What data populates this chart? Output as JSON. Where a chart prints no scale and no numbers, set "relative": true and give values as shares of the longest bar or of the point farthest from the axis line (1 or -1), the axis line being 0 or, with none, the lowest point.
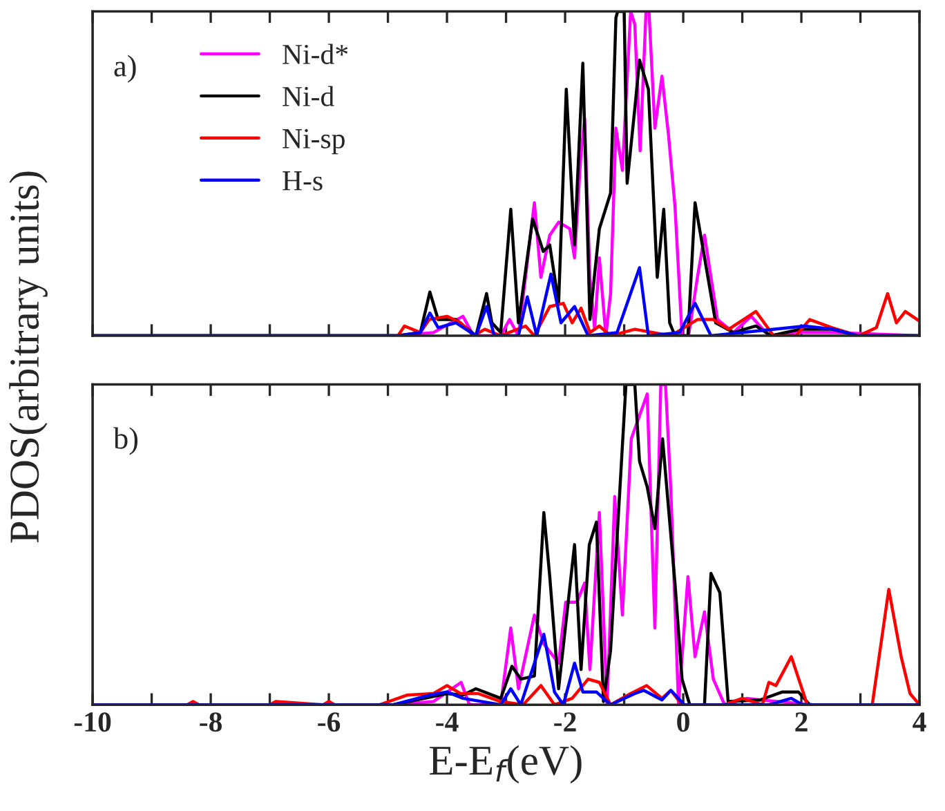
{
  "chart_data": [
    {
      "type": "line",
      "relative": true,
      "ylabel": "PDOS(arbitrary units)",
      "annotations": [
        "a)"
      ],
      "legend": "top left",
      "tick_labels": false,
      "xlim": [
        -10,
        4
      ],
      "xticks": [
        -10,
        {
          "value": -9,
          "label": null
        },
        -8,
        {
          "value": -7,
          "label": null
        },
        -6,
        {
          "value": -5,
          "label": null
        },
        -4,
        {
          "value": -3,
          "label": null
        },
        -2,
        {
          "value": -1,
          "label": null
        },
        0,
        {
          "value": 1,
          "label": null
        },
        2,
        {
          "value": 3,
          "label": null
        },
        4
      ],
      "marker": "none",
      "line_style": "solid",
      "series": [
        {
          "name": "Ni-d*",
          "color": "#ff00ff",
          "x": [
            -10,
            -4.83,
            -4.23,
            -3.73,
            -3.55,
            -3.09,
            -2.94,
            -2.79,
            -2.52,
            -2.41,
            -2.26,
            -2.11,
            -1.92,
            -1.84,
            -1.74,
            -1.67,
            -1.58,
            -1.5,
            -1.42,
            -1.31,
            -1.23,
            -1.14,
            -1.03,
            -0.89,
            -0.82,
            -0.73,
            -0.63,
            -0.58,
            -0.48,
            -0.36,
            -0.25,
            -0.14,
            -0.02,
            0.09,
            0.24,
            0.36,
            0.47,
            0.58,
            0.85,
            1.15,
            1.45,
            1.91,
            2.52,
            4.0
          ],
          "values": [
            0,
            0,
            0.01,
            0.06,
            0,
            0,
            0.05,
            0,
            0.41,
            0.18,
            0.31,
            0.35,
            0.33,
            0.24,
            0.54,
            0.67,
            0.18,
            0.02,
            0.24,
            0,
            0.13,
            0.64,
            0.51,
            1,
            0.96,
            0.57,
            1,
            1,
            0.64,
            0.8,
            0.62,
            0.4,
            0,
            0,
            0.18,
            0.31,
            0.18,
            0.05,
            0.01,
            0.06,
            0,
            0.01,
            0.01,
            0
          ]
        },
        {
          "name": "Ni-d",
          "color": "#000000",
          "x": [
            -10,
            -4.83,
            -4.45,
            -4.29,
            -4.15,
            -3.85,
            -3.51,
            -3.33,
            -3.24,
            -3.09,
            -2.92,
            -2.79,
            -2.55,
            -2.37,
            -2.26,
            -2.11,
            -1.98,
            -1.84,
            -1.7,
            -1.58,
            -1.42,
            -1.23,
            -1.14,
            -1.11,
            -1.0,
            -0.95,
            -0.82,
            -0.74,
            -0.59,
            -0.44,
            -0.33,
            -0.23,
            -0.14,
            0.08,
            0.2,
            0.39,
            0.55,
            0.85,
            1.23,
            1.49,
            1.98,
            2.52,
            2.97,
            4.0
          ],
          "values": [
            0,
            0,
            0.01,
            0.135,
            0.05,
            0.05,
            0,
            0.13,
            0.04,
            0.01,
            0.39,
            0.04,
            0.36,
            0.26,
            0.28,
            0.1,
            0.76,
            0.28,
            0.84,
            0.05,
            0.33,
            0.44,
            0.98,
            1,
            1,
            0.47,
            0.7,
            0.85,
            0.76,
            0.18,
            0.39,
            0.04,
            0,
            0,
            0.41,
            0.21,
            0.04,
            0.01,
            0.03,
            0,
            0.02,
            0.02,
            0,
            0
          ]
        },
        {
          "name": "Ni-sp",
          "color": "#ff0000",
          "x": [
            -10,
            -4.83,
            -4.72,
            -4.45,
            -4.3,
            -4.0,
            -3.77,
            -3.55,
            -3.36,
            -3.09,
            -2.67,
            -2.52,
            -2.26,
            -2.03,
            -1.88,
            -1.73,
            -1.58,
            -1.42,
            -1.23,
            -0.82,
            -0.21,
            0.24,
            0.51,
            0.77,
            1.23,
            1.53,
            1.91,
            2.14,
            2.52,
            2.97,
            3.27,
            3.46,
            3.61,
            3.76,
            4.0
          ],
          "values": [
            0,
            0,
            0.03,
            0.01,
            0.05,
            0.06,
            0.04,
            0,
            0.02,
            0,
            0.03,
            0,
            0.09,
            0.1,
            0.04,
            0.085,
            0.01,
            0.03,
            0,
            0.02,
            0,
            0.05,
            0.05,
            0.02,
            0.075,
            0,
            0,
            0.05,
            0.025,
            0,
            0.025,
            0.13,
            0.04,
            0.075,
            0.045
          ]
        },
        {
          "name": "H-s",
          "color": "#0000ff",
          "x": [
            -10,
            -4.83,
            -4.45,
            -4.29,
            -4.15,
            -3.85,
            -3.51,
            -3.33,
            -3.2,
            -2.79,
            -2.64,
            -2.48,
            -2.24,
            -2.07,
            -1.84,
            -1.61,
            -1.12,
            -0.74,
            -0.59,
            -0.06,
            0.2,
            0.47,
            2.06,
            2.55,
            2.97,
            4.0
          ],
          "values": [
            0,
            0,
            0.01,
            0.07,
            0.025,
            0.04,
            0,
            0.09,
            0,
            0,
            0.12,
            0,
            0.19,
            0.04,
            0.09,
            0,
            0.01,
            0.21,
            0,
            0.01,
            0.1,
            0,
            0.03,
            0.02,
            0,
            0
          ]
        }
      ]
    },
    {
      "type": "line",
      "relative": true,
      "xlabel": "E-E$_{f}$(eV)",
      "annotations": [
        "b)"
      ],
      "tick_labels": "x",
      "xlim": [
        -10,
        4
      ],
      "xticks": [
        -10,
        {
          "value": -9,
          "label": null
        },
        -8,
        {
          "value": -7,
          "label": null
        },
        -6,
        {
          "value": -5,
          "label": null
        },
        -4,
        {
          "value": -3,
          "label": null
        },
        -2,
        {
          "value": -1,
          "label": null
        },
        0,
        {
          "value": 1,
          "label": null
        },
        2,
        {
          "value": 3,
          "label": null
        },
        4
      ],
      "marker": "none",
      "line_style": "solid",
      "series": [
        {
          "color": "#ff00ff",
          "x": [
            -10,
            -4.91,
            -4.23,
            -3.76,
            -3.62,
            -3.09,
            -2.92,
            -2.79,
            -2.52,
            -2.36,
            -2.11,
            -1.99,
            -1.8,
            -1.67,
            -1.58,
            -1.42,
            -1.29,
            -1.16,
            -1.03,
            -0.88,
            -0.61,
            -0.48,
            -0.38,
            -0.3,
            -0.21,
            -0.08,
            0.08,
            0.2,
            0.36,
            0.51,
            0.7,
            1.08,
            1.3,
            2.21,
            4.0
          ],
          "values": [
            0,
            0,
            0.01,
            0.07,
            0,
            0,
            0.24,
            0.05,
            0.28,
            0.19,
            0.13,
            0.32,
            0.32,
            0.38,
            0.11,
            0.6,
            0,
            0.65,
            0.28,
            0.83,
            0.97,
            0.24,
            1,
            1,
            0.67,
            0,
            0.4,
            0.15,
            0.29,
            0.08,
            0,
            0.02,
            0.015,
            0,
            0
          ]
        },
        {
          "color": "#000000",
          "x": [
            -10,
            -4.91,
            -4.38,
            -4.0,
            -3.73,
            -3.51,
            -3.09,
            -2.9,
            -2.75,
            -2.52,
            -2.36,
            -2.26,
            -2.11,
            -1.84,
            -1.73,
            -1.59,
            -1.47,
            -1.35,
            -1.23,
            -0.97,
            -0.82,
            -0.74,
            -0.61,
            -0.48,
            -0.35,
            -0.14,
            -0.02,
            0.11,
            0.36,
            0.47,
            0.62,
            0.76,
            1.3,
            1.68,
            1.95,
            2.14,
            4.0
          ],
          "values": [
            0,
            0,
            0.02,
            0.035,
            0.03,
            0.05,
            0.02,
            0.12,
            0.08,
            0.09,
            0.6,
            0.4,
            0.05,
            0.5,
            0.11,
            0.5,
            0.57,
            0.01,
            0.17,
            1,
            1,
            0.76,
            0.68,
            0.55,
            0.83,
            0.38,
            0.08,
            0,
            0,
            0.41,
            0.35,
            0.01,
            0.015,
            0.04,
            0.04,
            0,
            0
          ]
        },
        {
          "color": "#ff0000",
          "x": [
            -10,
            -8.4,
            -8.3,
            -8.2,
            -7.0,
            -6.9,
            -6.1,
            -6.0,
            -5.9,
            -5.14,
            -4.68,
            -4.23,
            -4.0,
            -3.77,
            -3.47,
            -3.09,
            -2.71,
            -2.41,
            -2.18,
            -1.88,
            -1.61,
            -1.42,
            -1.23,
            -0.89,
            -0.62,
            -0.36,
            -0.21,
            -0.02,
            0.7,
            1.0,
            1.34,
            1.45,
            1.57,
            1.83,
            2.1,
            3.2,
            3.48,
            3.69,
            3.84,
            4.0
          ],
          "values": [
            0,
            0,
            0.01,
            0,
            0,
            0.01,
            0,
            0.01,
            0,
            0,
            0.03,
            0.035,
            0.06,
            0.035,
            0.035,
            0.01,
            0,
            0.06,
            0,
            0.02,
            0.08,
            0.07,
            0,
            0.035,
            0.06,
            0.02,
            0.045,
            0,
            0,
            0.02,
            0,
            0.07,
            0.06,
            0.15,
            0,
            0,
            0.36,
            0.15,
            0.035,
            0
          ]
        },
        {
          "color": "#0000ff",
          "x": [
            -10,
            -4.91,
            -4.3,
            -4.0,
            -3.73,
            -3.09,
            -2.92,
            -2.75,
            -2.36,
            -2.18,
            -2.03,
            -1.84,
            -1.7,
            -1.47,
            -1.23,
            -0.82,
            -0.67,
            -0.36,
            -0.21,
            0.02,
            1.45,
            1.83,
            2.02,
            4.0
          ],
          "values": [
            0,
            0,
            0.03,
            0.04,
            0.02,
            0,
            0.05,
            0,
            0.22,
            0.04,
            0,
            0.13,
            0.04,
            0.04,
            0,
            0.035,
            0.045,
            0.015,
            0.045,
            0,
            0,
            0.02,
            0,
            0
          ]
        }
      ]
    }
  ]
}
